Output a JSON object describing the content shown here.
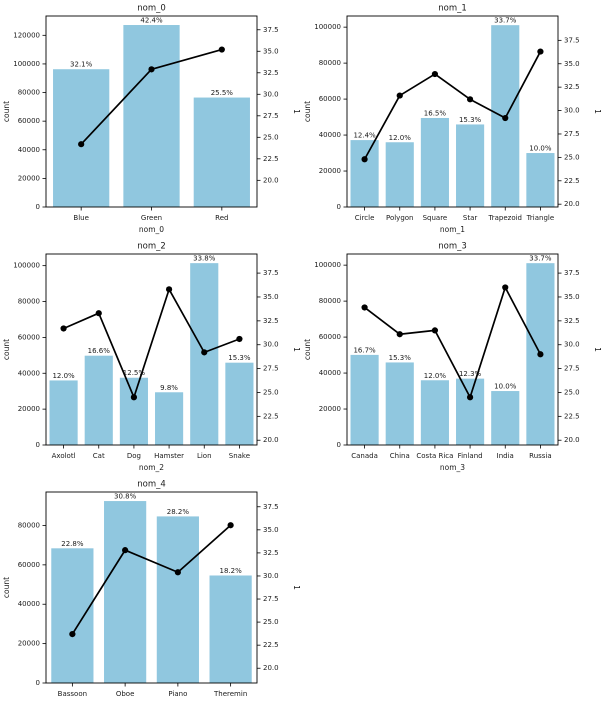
{
  "figure": {
    "background": "#ffffff",
    "bar_color": "#90c7df",
    "line_color": "#000000",
    "axis_color": "#000000",
    "text_color": "#1a1a1a"
  },
  "chart_data": [
    {
      "type": "bar+line",
      "title": "nom_0",
      "xlabel": "nom_0",
      "ylabel_left": "count",
      "ylabel_right": "1",
      "categories": [
        "Blue",
        "Green",
        "Red"
      ],
      "series": [
        {
          "name": "count",
          "type": "bar",
          "values": [
            96300,
            127200,
            76500
          ],
          "labels": [
            "32.1%",
            "42.4%",
            "25.5%"
          ]
        },
        {
          "name": "1",
          "type": "line",
          "values": [
            24.2,
            32.9,
            35.2
          ]
        }
      ],
      "yticks_left": [
        0,
        20000,
        40000,
        60000,
        80000,
        100000,
        120000
      ],
      "yticks_right": [
        20.0,
        22.5,
        25.0,
        27.5,
        30.0,
        32.5,
        35.0,
        37.5
      ],
      "ylim_left": [
        0,
        133500
      ],
      "ylim_right": [
        16.9,
        39.1
      ],
      "grid": false,
      "legend": null
    },
    {
      "type": "bar+line",
      "title": "nom_1",
      "xlabel": "nom_1",
      "ylabel_left": "count",
      "ylabel_right": "1",
      "categories": [
        "Circle",
        "Polygon",
        "Square",
        "Star",
        "Trapezoid",
        "Triangle"
      ],
      "series": [
        {
          "name": "count",
          "type": "bar",
          "values": [
            37200,
            36000,
            49500,
            45900,
            101100,
            30000
          ],
          "labels": [
            "12.4%",
            "12.0%",
            "16.5%",
            "15.3%",
            "33.7%",
            "10.0%"
          ]
        },
        {
          "name": "1",
          "type": "line",
          "values": [
            24.8,
            31.6,
            33.9,
            31.2,
            29.2,
            36.3
          ]
        }
      ],
      "yticks_left": [
        0,
        20000,
        40000,
        60000,
        80000,
        100000
      ],
      "yticks_right": [
        20.0,
        22.5,
        25.0,
        27.5,
        30.0,
        32.5,
        35.0,
        37.5
      ],
      "ylim_left": [
        0,
        106200
      ],
      "ylim_right": [
        19.7,
        40.1
      ],
      "grid": false,
      "legend": null
    },
    {
      "type": "bar+line",
      "title": "nom_2",
      "xlabel": "nom_2",
      "ylabel_left": "count",
      "ylabel_right": "1",
      "categories": [
        "Axolotl",
        "Cat",
        "Dog",
        "Hamster",
        "Lion",
        "Snake"
      ],
      "series": [
        {
          "name": "count",
          "type": "bar",
          "values": [
            36000,
            49800,
            37500,
            29400,
            101400,
            45900
          ],
          "labels": [
            "12.0%",
            "16.6%",
            "12.5%",
            "9.8%",
            "33.8%",
            "15.3%"
          ]
        },
        {
          "name": "1",
          "type": "line",
          "values": [
            31.7,
            33.3,
            24.5,
            35.8,
            29.2,
            30.6
          ]
        }
      ],
      "yticks_left": [
        0,
        20000,
        40000,
        60000,
        80000,
        100000
      ],
      "yticks_right": [
        20.0,
        22.5,
        25.0,
        27.5,
        30.0,
        32.5,
        35.0,
        37.5
      ],
      "ylim_left": [
        0,
        106500
      ],
      "ylim_right": [
        19.5,
        39.5
      ],
      "grid": false,
      "legend": null
    },
    {
      "type": "bar+line",
      "title": "nom_3",
      "xlabel": "nom_3",
      "ylabel_left": "count",
      "ylabel_right": "1",
      "categories": [
        "Canada",
        "China",
        "Costa Rica",
        "Finland",
        "India",
        "Russia"
      ],
      "series": [
        {
          "name": "count",
          "type": "bar",
          "values": [
            50100,
            45900,
            36000,
            36900,
            30000,
            101100
          ],
          "labels": [
            "16.7%",
            "15.3%",
            "12.0%",
            "12.3%",
            "10.0%",
            "33.7%"
          ]
        },
        {
          "name": "1",
          "type": "line",
          "values": [
            33.9,
            31.1,
            31.5,
            24.5,
            36.0,
            29.0
          ]
        }
      ],
      "yticks_left": [
        0,
        20000,
        40000,
        60000,
        80000,
        100000
      ],
      "yticks_right": [
        20.0,
        22.5,
        25.0,
        27.5,
        30.0,
        32.5,
        35.0,
        37.5
      ],
      "ylim_left": [
        0,
        106200
      ],
      "ylim_right": [
        19.5,
        39.5
      ],
      "grid": false,
      "legend": null
    },
    {
      "type": "bar+line",
      "title": "nom_4",
      "xlabel": "",
      "ylabel_left": "count",
      "ylabel_right": "1",
      "categories": [
        "Bassoon",
        "Oboe",
        "Piano",
        "Theremin"
      ],
      "series": [
        {
          "name": "count",
          "type": "bar",
          "values": [
            68400,
            92400,
            84600,
            54600
          ],
          "labels": [
            "22.8%",
            "30.8%",
            "28.2%",
            "18.2%"
          ]
        },
        {
          "name": "1",
          "type": "line",
          "values": [
            23.7,
            32.8,
            30.4,
            35.5
          ]
        }
      ],
      "yticks_left": [
        0,
        20000,
        40000,
        60000,
        80000
      ],
      "yticks_right": [
        20.0,
        22.5,
        25.0,
        27.5,
        30.0,
        32.5,
        35.0,
        37.5
      ],
      "ylim_left": [
        0,
        97000
      ],
      "ylim_right": [
        18.4,
        39.1
      ],
      "grid": false,
      "legend": null
    }
  ]
}
